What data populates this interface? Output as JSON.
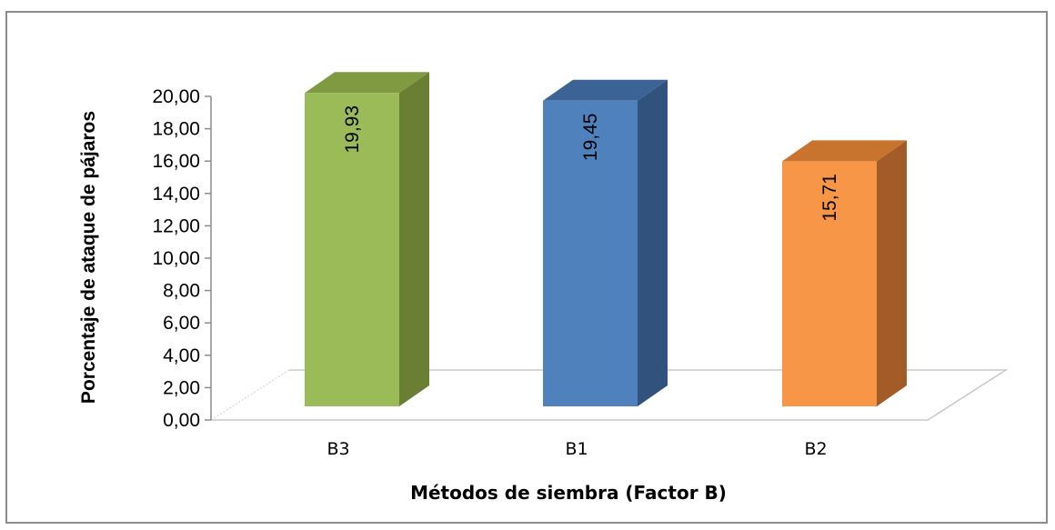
{
  "chart_data": {
    "type": "bar",
    "style": "3d-column",
    "categories": [
      "B3",
      "B1",
      "B2"
    ],
    "values": [
      19.93,
      19.45,
      15.71
    ],
    "value_labels": [
      "19,93",
      "19,45",
      "15,71"
    ],
    "colors": {
      "B3": {
        "front": "#9bbb59",
        "side": "#6a7f34",
        "top": "#7f9a40"
      },
      "B1": {
        "front": "#4f81bd",
        "side": "#31527c",
        "top": "#3b6396"
      },
      "B2": {
        "front": "#f79646",
        "side": "#a35c27",
        "top": "#c8742f"
      }
    },
    "title": "",
    "xlabel": "Métodos de siembra (Factor B)",
    "ylabel": "Porcentaje de ataque de pájaros",
    "ylim": [
      0,
      20
    ],
    "yticks": [
      0,
      2,
      4,
      6,
      8,
      10,
      12,
      14,
      16,
      18,
      20
    ],
    "ytick_labels": [
      "0,00",
      "2,00",
      "4,00",
      "6,00",
      "8,00",
      "10,00",
      "12,00",
      "14,00",
      "16,00",
      "18,00",
      "20,00"
    ],
    "grid": false,
    "legend": false
  }
}
